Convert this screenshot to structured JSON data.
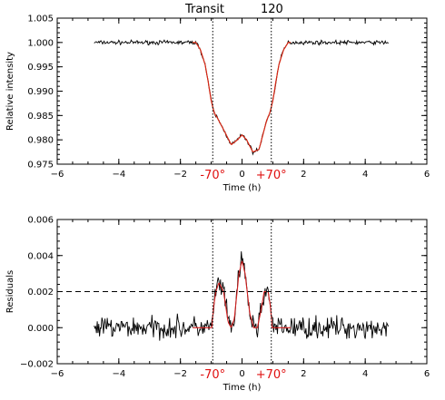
{
  "header": {
    "title": "Transit",
    "number": "120"
  },
  "colors": {
    "model_line": "#d42020",
    "model_line_alt": "#e8a000",
    "data_line": "#000000",
    "angle_label": "#e01010"
  },
  "chart_data": [
    {
      "type": "line",
      "id": "lightcurve",
      "title": "",
      "xlabel": "Time (h)",
      "ylabel": "Relative intensity",
      "xlim": [
        -6,
        6
      ],
      "ylim": [
        0.975,
        1.005
      ],
      "xticks": [
        -6,
        -4,
        -2,
        0,
        2,
        4,
        6
      ],
      "xtick_labels": [
        "−6",
        "−4",
        "−2",
        "0",
        "2",
        "4",
        "6"
      ],
      "yticks": [
        0.975,
        0.98,
        0.985,
        0.99,
        0.995,
        1.0,
        1.005
      ],
      "ytick_labels": [
        "0.975",
        "0.980",
        "0.985",
        "0.990",
        "0.995",
        "1.000",
        "1.005"
      ],
      "vlines": [
        -0.95,
        0.95
      ],
      "vline_labels": [
        "-70°",
        "+70°"
      ],
      "data_range": [
        -4.8,
        4.75
      ],
      "model_knots": [
        [
          -4.8,
          1.0
        ],
        [
          -1.5,
          1.0
        ],
        [
          -1.35,
          0.9985
        ],
        [
          -1.2,
          0.9955
        ],
        [
          -1.1,
          0.992
        ],
        [
          -1.0,
          0.988
        ],
        [
          -0.9,
          0.9855
        ],
        [
          -0.8,
          0.9845
        ],
        [
          -0.55,
          0.9815
        ],
        [
          -0.35,
          0.979
        ],
        [
          -0.15,
          0.98
        ],
        [
          0.0,
          0.981
        ],
        [
          0.15,
          0.98
        ],
        [
          0.35,
          0.9775
        ],
        [
          0.55,
          0.978
        ],
        [
          0.8,
          0.984
        ],
        [
          0.9,
          0.9855
        ],
        [
          1.0,
          0.988
        ],
        [
          1.1,
          0.992
        ],
        [
          1.2,
          0.9955
        ],
        [
          1.35,
          0.9985
        ],
        [
          1.5,
          1.0
        ],
        [
          4.75,
          1.0
        ]
      ],
      "noise_amplitude": 0.0004
    },
    {
      "type": "line",
      "id": "residuals",
      "title": "",
      "xlabel": "Time (h)",
      "ylabel": "Residuals",
      "xlim": [
        -6,
        6
      ],
      "ylim": [
        -0.002,
        0.006
      ],
      "xticks": [
        -6,
        -4,
        -2,
        0,
        2,
        4,
        6
      ],
      "xtick_labels": [
        "−6",
        "−4",
        "−2",
        "0",
        "2",
        "4",
        "6"
      ],
      "yticks": [
        -0.002,
        0.0,
        0.002,
        0.004,
        0.006
      ],
      "ytick_labels": [
        "−0.002",
        "0.000",
        "0.002",
        "0.004",
        "0.006"
      ],
      "hline": 0.002,
      "vlines": [
        -0.95,
        0.95
      ],
      "vline_labels": [
        "-70°",
        "+70°"
      ],
      "data_range": [
        -4.8,
        4.75
      ],
      "model_knots": [
        [
          -4.8,
          0.0
        ],
        [
          -0.98,
          0.0
        ],
        [
          -0.92,
          0.0012
        ],
        [
          -0.85,
          0.002
        ],
        [
          -0.75,
          0.0025
        ],
        [
          -0.6,
          0.002
        ],
        [
          -0.45,
          0.0003
        ],
        [
          -0.35,
          0.0
        ],
        [
          -0.25,
          0.0005
        ],
        [
          -0.1,
          0.003
        ],
        [
          0.0,
          0.0037
        ],
        [
          0.1,
          0.003
        ],
        [
          0.25,
          0.0008
        ],
        [
          0.38,
          0.0
        ],
        [
          0.5,
          0.0
        ],
        [
          0.62,
          0.001
        ],
        [
          0.72,
          0.002
        ],
        [
          0.85,
          0.002
        ],
        [
          0.92,
          0.0012
        ],
        [
          0.98,
          0.0
        ],
        [
          4.75,
          0.0
        ]
      ],
      "noise_amplitude": 0.0006
    }
  ]
}
